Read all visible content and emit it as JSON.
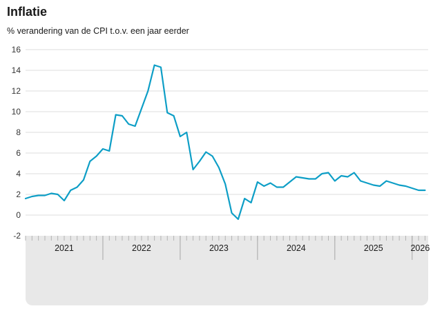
{
  "header": {
    "title": "Inflatie",
    "subtitle": "% verandering van de CPI t.o.v. een jaar eerder"
  },
  "chart_data": {
    "type": "line",
    "title": "Inflatie",
    "subtitle": "% verandering van de CPI t.o.v. een jaar eerder",
    "x_year_labels": [
      "2021",
      "2022",
      "2023",
      "2024",
      "2025",
      "2026"
    ],
    "months_per_year": 12,
    "x_start": "2021-01",
    "x_end": "2026-03",
    "y_ticks": [
      16,
      14,
      12,
      10,
      8,
      6,
      4,
      2,
      0,
      -2
    ],
    "ylim": [
      -2,
      16
    ],
    "grid": true,
    "legend": "none",
    "series": [
      {
        "name": "Inflatie (% t.o.v. een jaar eerder)",
        "values": [
          1.6,
          1.8,
          1.9,
          1.9,
          2.1,
          2.0,
          1.4,
          2.4,
          2.7,
          3.4,
          5.2,
          5.7,
          6.4,
          6.2,
          9.7,
          9.6,
          8.8,
          8.6,
          10.3,
          12.0,
          14.5,
          14.3,
          9.9,
          9.6,
          7.6,
          8.0,
          4.4,
          5.2,
          6.1,
          5.7,
          4.6,
          3.0,
          0.2,
          -0.4,
          1.6,
          1.2,
          3.2,
          2.8,
          3.1,
          2.7,
          2.7,
          3.2,
          3.7,
          3.6,
          3.5,
          3.5,
          4.0,
          4.1,
          3.3,
          3.8,
          3.7,
          4.1,
          3.3,
          3.1,
          2.9,
          2.8,
          3.3,
          3.1,
          2.9,
          2.8,
          2.6,
          2.4,
          2.4
        ]
      }
    ],
    "colors": {
      "line": "#0d9ec6",
      "grid": "#dcdcdc",
      "axis_band": "#e8e8e8",
      "tick_mark": "#b3b3b3",
      "year_separator": "#a6a6a6",
      "tick_text": "#333333",
      "year_text": "#1a1a1a",
      "logo": "#a6a6a6"
    }
  },
  "footer": {
    "logo_name": "cbs-logo"
  }
}
